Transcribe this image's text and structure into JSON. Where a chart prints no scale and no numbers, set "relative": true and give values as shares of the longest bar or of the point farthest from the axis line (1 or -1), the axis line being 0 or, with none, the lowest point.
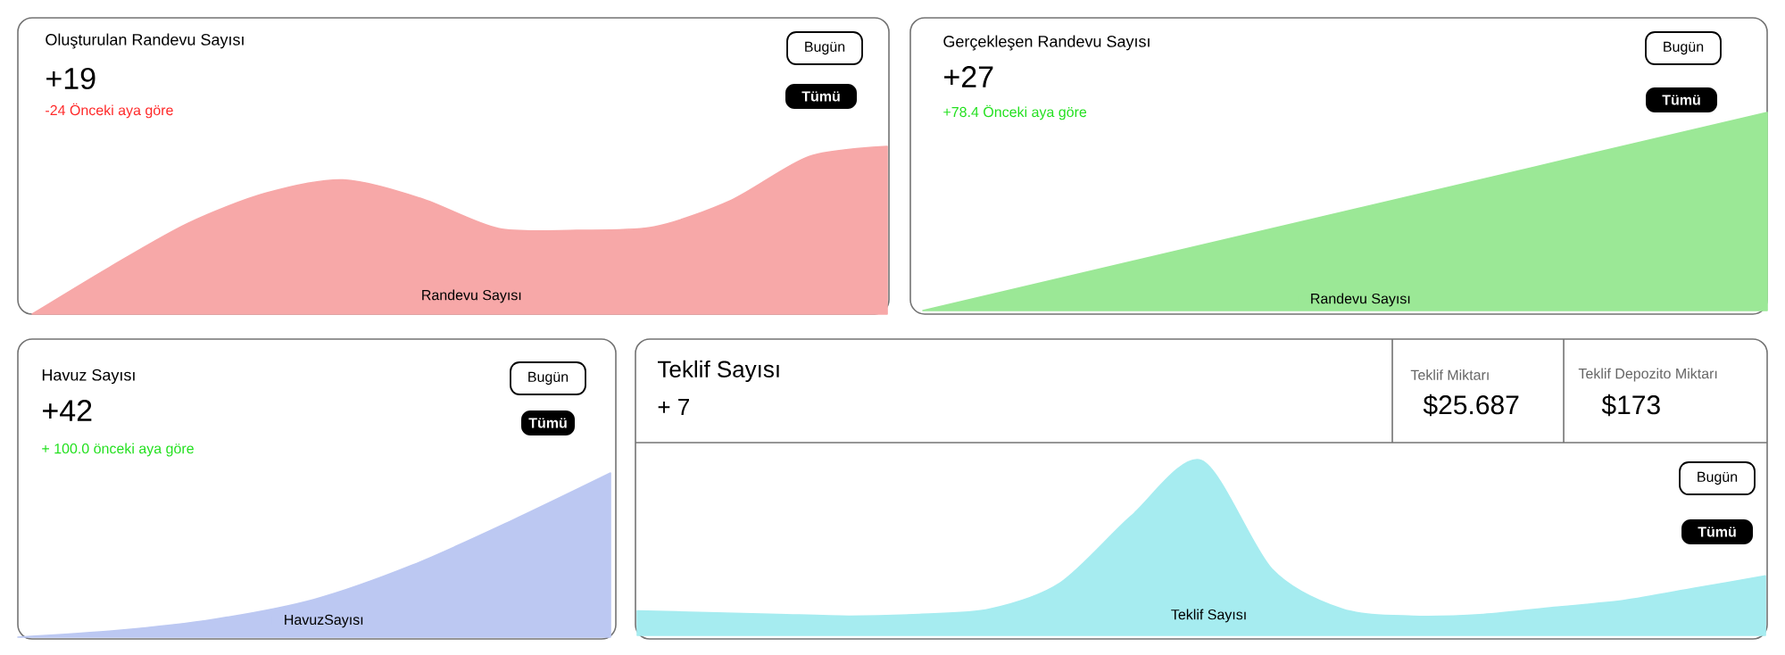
{
  "chart_data": [
    {
      "type": "area",
      "relative": true,
      "title": "Oluşturulan Randevu Sayısı",
      "subtitle": "+19",
      "annotations": [
        "-24 Önceki aya göre",
        "Bugün",
        "Tümü"
      ],
      "legend": "bottom",
      "categories": [
        null,
        null,
        null,
        null,
        null,
        null,
        null,
        null,
        null,
        null,
        null,
        null
      ],
      "series": [
        {
          "name": "Randevu Sayısı",
          "color": "#f7a8a8",
          "values": [
            0,
            0.28,
            0.54,
            0.72,
            0.8,
            0.69,
            0.51,
            0.5,
            0.52,
            0.68,
            0.94,
            1
          ]
        }
      ]
    },
    {
      "type": "area",
      "relative": true,
      "title": "Gerçekleşen Randevu Sayısı",
      "subtitle": "+27",
      "annotations": [
        "+78.4 Önceki aya göre",
        "Bugün",
        "Tümü"
      ],
      "legend": "bottom",
      "categories": [
        null,
        null,
        null
      ],
      "series": [
        {
          "name": "Randevu Sayısı",
          "color": "#9be896",
          "values": [
            0,
            0.5,
            1
          ]
        }
      ]
    },
    {
      "type": "area",
      "relative": true,
      "title": "Havuz Sayısı",
      "subtitle": "+42",
      "annotations": [
        "+  100.0 önceki aya göre",
        "Bugün",
        "Tümü"
      ],
      "legend": "bottom",
      "categories": [
        null,
        null,
        null,
        null,
        null,
        null,
        null
      ],
      "series": [
        {
          "name": "HavuzSayısı",
          "color": "#bcc8f2",
          "values": [
            0,
            0.04,
            0.11,
            0.23,
            0.44,
            0.71,
            1
          ]
        }
      ]
    },
    {
      "type": "area",
      "relative": true,
      "title": "Teklif Sayısı",
      "subtitle": "+   7",
      "annotations": [
        "Teklif Miktarı",
        "$25.687",
        "Teklif Depozito Miktarı",
        "$173",
        "Bugün",
        "Tümü"
      ],
      "legend": "bottom",
      "categories": [
        null,
        null,
        null,
        null,
        null,
        null,
        null,
        null,
        null,
        null,
        null,
        null,
        null,
        null,
        null,
        null,
        null
      ],
      "series": [
        {
          "name": "Teklif Sayısı",
          "color": "#a6ecf0",
          "values": [
            0.14,
            0.13,
            0.12,
            0.11,
            0.12,
            0.15,
            0.3,
            0.68,
            1,
            0.38,
            0.15,
            0.11,
            0.12,
            0.16,
            0.2,
            0.27,
            0.34
          ]
        }
      ]
    }
  ]
}
